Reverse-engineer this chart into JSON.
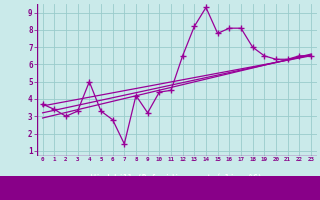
{
  "xlabel": "Windchill (Refroidissement éolien,°C)",
  "bg_color": "#caeaea",
  "line_color": "#990099",
  "grid_color": "#99cccc",
  "text_color": "#880088",
  "axis_bar_color": "#880088",
  "xlim": [
    -0.5,
    23.5
  ],
  "ylim": [
    0.7,
    9.5
  ],
  "xticks": [
    0,
    1,
    2,
    3,
    4,
    5,
    6,
    7,
    8,
    9,
    10,
    11,
    12,
    13,
    14,
    15,
    16,
    17,
    18,
    19,
    20,
    21,
    22,
    23
  ],
  "yticks": [
    1,
    2,
    3,
    4,
    5,
    6,
    7,
    8,
    9
  ],
  "main_x": [
    0,
    1,
    2,
    3,
    4,
    5,
    6,
    7,
    8,
    9,
    10,
    11,
    12,
    13,
    14,
    15,
    16,
    17,
    18,
    19,
    20,
    21,
    22,
    23
  ],
  "main_y": [
    3.7,
    3.4,
    3.0,
    3.3,
    5.0,
    3.3,
    2.8,
    1.4,
    4.2,
    3.2,
    4.4,
    4.5,
    6.5,
    8.2,
    9.3,
    7.8,
    8.1,
    8.1,
    7.0,
    6.5,
    6.3,
    6.3,
    6.5,
    6.5
  ],
  "trend1_x": [
    0,
    23
  ],
  "trend1_y": [
    3.6,
    6.5
  ],
  "trend2_x": [
    0,
    23
  ],
  "trend2_y": [
    3.2,
    6.55
  ],
  "trend3_x": [
    0,
    23
  ],
  "trend3_y": [
    2.9,
    6.6
  ]
}
